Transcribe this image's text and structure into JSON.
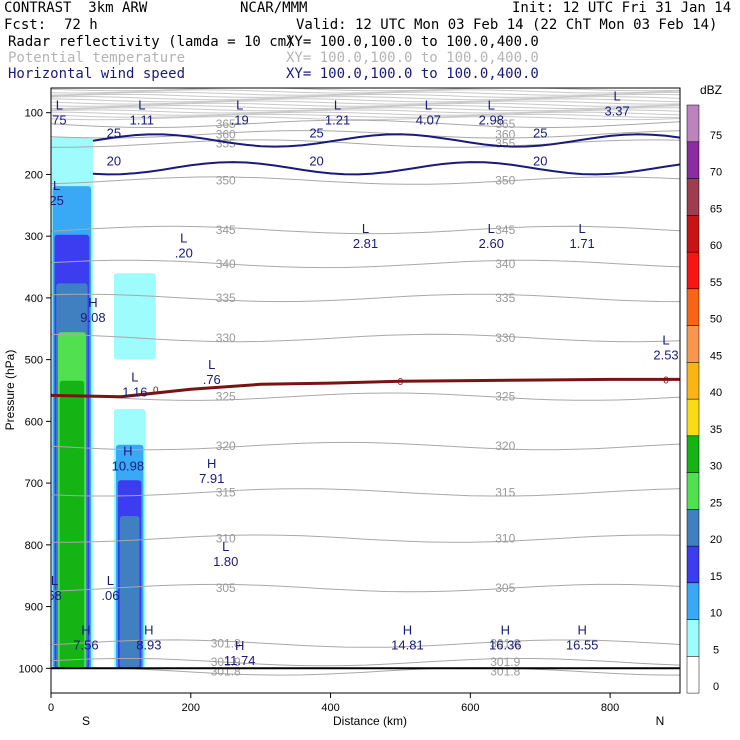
{
  "header": {
    "model": "CONTRAST  3km ARW",
    "org": "NCAR/MMM",
    "init": "Init: 12 UTC Fri 31 Jan 14",
    "fcst_label": "Fcst:",
    "fcst_value": "72 h",
    "valid": "Valid: 12 UTC Mon 03 Feb 14 (22 ChT Mon 03 Feb 14)",
    "fields": [
      {
        "name": "Radar reflectivity (lamda = 10 cm)",
        "xy": "XY= 100.0,100.0 to 100.0,400.0",
        "color": "#000000"
      },
      {
        "name": "Potential temperature",
        "xy": "XY= 100.0,100.0 to 100.0,400.0",
        "color": "#b4b4b4"
      },
      {
        "name": "Horizontal wind speed",
        "xy": "XY= 100.0,100.0 to 100.0,400.0",
        "color": "#1a1a7a"
      }
    ]
  },
  "chart_data": {
    "type": "contour_cross_section",
    "xlabel": "Distance (km)",
    "ylabel": "Pressure (hPa)",
    "xlim": [
      0,
      900
    ],
    "ylim": [
      1040,
      60
    ],
    "x_ticks": [
      0,
      200,
      400,
      600,
      800
    ],
    "y_ticks": [
      100,
      200,
      300,
      400,
      500,
      600,
      700,
      800,
      900,
      1000
    ],
    "x_end_labels": {
      "left": "S",
      "right": "N"
    },
    "colorbar": {
      "unit": "dBZ",
      "levels": [
        0,
        5,
        10,
        15,
        20,
        25,
        30,
        35,
        40,
        45,
        50,
        55,
        60,
        65,
        70,
        75
      ],
      "colors": [
        "#ffffff",
        "#9ffcfc",
        "#3aa9f5",
        "#3c3cf0",
        "#4080c0",
        "#50e050",
        "#14b414",
        "#fadc14",
        "#fab414",
        "#fa9650",
        "#fa6414",
        "#fa1414",
        "#c81414",
        "#a03c50",
        "#8c2ca0",
        "#be82be"
      ]
    },
    "theta_contours": [
      {
        "label": "365",
        "p": 118
      },
      {
        "label": "360",
        "p": 135
      },
      {
        "label": "355",
        "p": 150
      },
      {
        "label": "350",
        "p": 210
      },
      {
        "label": "345",
        "p": 290
      },
      {
        "label": "340",
        "p": 345
      },
      {
        "label": "335",
        "p": 400
      },
      {
        "label": "330",
        "p": 465
      },
      {
        "label": "325",
        "p": 560
      },
      {
        "label": "320",
        "p": 640
      },
      {
        "label": "315",
        "p": 715
      },
      {
        "label": "310",
        "p": 790
      },
      {
        "label": "305",
        "p": 870
      },
      {
        "label": "301.8",
        "p": 960
      },
      {
        "label": "301.9",
        "p": 990
      },
      {
        "label": "301.8",
        "p": 1005
      }
    ],
    "wind_contours": [
      {
        "label": "20",
        "p": 190
      },
      {
        "label": "25",
        "p": 145
      }
    ],
    "freezing_level": {
      "label": "0",
      "x": [
        0,
        100,
        200,
        300,
        400,
        500,
        600,
        700,
        800,
        900
      ],
      "p": [
        558,
        560,
        548,
        540,
        538,
        535,
        534,
        533,
        532,
        532
      ]
    },
    "reflectivity_columns": [
      {
        "x0": 0,
        "x1": 60,
        "p_top": 140,
        "p_bottom": 1000,
        "dbz_max": 30
      },
      {
        "x0": 90,
        "x1": 135,
        "p_top": 580,
        "p_bottom": 1000,
        "dbz_max": 20
      },
      {
        "x0": 90,
        "x1": 150,
        "p_top": 360,
        "p_bottom": 500,
        "dbz_max": 5
      }
    ],
    "wind_extrema": [
      {
        "type": "L",
        "value": "75",
        "x": 12,
        "p": 100
      },
      {
        "type": "L",
        "value": "1.11",
        "x": 130,
        "p": 100
      },
      {
        "type": "L",
        "value": ".19",
        "x": 270,
        "p": 100
      },
      {
        "type": "L",
        "value": "1.21",
        "x": 410,
        "p": 100
      },
      {
        "type": "L",
        "value": "4.07",
        "x": 540,
        "p": 100
      },
      {
        "type": "L",
        "value": "2.98",
        "x": 630,
        "p": 100
      },
      {
        "type": "L",
        "value": "3.37",
        "x": 810,
        "p": 85
      },
      {
        "type": "L",
        "value": "25",
        "x": 8,
        "p": 230
      },
      {
        "type": "L",
        "value": ".20",
        "x": 190,
        "p": 315
      },
      {
        "type": "L",
        "value": "2.81",
        "x": 450,
        "p": 300
      },
      {
        "type": "L",
        "value": "2.60",
        "x": 630,
        "p": 300
      },
      {
        "type": "L",
        "value": "1.71",
        "x": 760,
        "p": 300
      },
      {
        "type": "H",
        "value": "9.08",
        "x": 60,
        "p": 420
      },
      {
        "type": "L",
        "value": "2.53",
        "x": 880,
        "p": 480
      },
      {
        "type": "L",
        "value": ".76",
        "x": 230,
        "p": 520
      },
      {
        "type": "L",
        "value": "1.16",
        "x": 120,
        "p": 540
      },
      {
        "type": "H",
        "value": "10.98",
        "x": 110,
        "p": 660
      },
      {
        "type": "H",
        "value": "7.91",
        "x": 230,
        "p": 680
      },
      {
        "type": "L",
        "value": "1.80",
        "x": 250,
        "p": 815
      },
      {
        "type": "L",
        "value": "58",
        "x": 5,
        "p": 870
      },
      {
        "type": "L",
        "value": ".06",
        "x": 85,
        "p": 870
      },
      {
        "type": "H",
        "value": "7.56",
        "x": 50,
        "p": 950
      },
      {
        "type": "H",
        "value": "8.93",
        "x": 140,
        "p": 950
      },
      {
        "type": "H",
        "value": "11.74",
        "x": 270,
        "p": 975
      },
      {
        "type": "H",
        "value": "14.81",
        "x": 510,
        "p": 950
      },
      {
        "type": "H",
        "value": "16.36",
        "x": 650,
        "p": 950
      },
      {
        "type": "H",
        "value": "16.55",
        "x": 760,
        "p": 950
      }
    ]
  }
}
